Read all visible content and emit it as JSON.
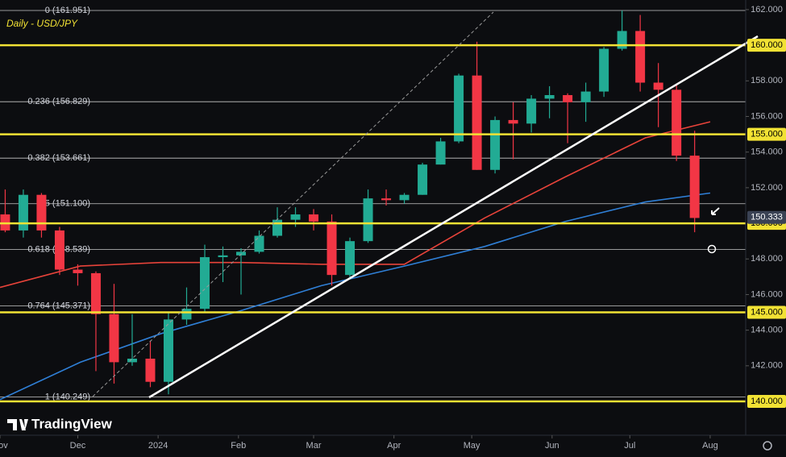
{
  "chart_data": {
    "type": "candlestick",
    "title": "Daily - USD/JPY",
    "brand": "TradingView",
    "x": [
      2,
      9,
      16,
      23,
      30,
      37,
      44,
      51,
      58,
      65,
      72,
      79,
      86,
      93,
      100,
      107,
      114,
      121,
      128,
      135,
      142,
      149,
      156,
      163,
      170,
      177,
      184,
      191,
      198,
      205,
      212,
      219,
      226,
      233,
      240,
      247,
      254,
      261,
      268
    ],
    "open": [
      150.5,
      149.6,
      151.6,
      149.6,
      147.4,
      147.2,
      144.9,
      142.2,
      142.4,
      141.1,
      144.6,
      145.2,
      148.1,
      148.2,
      148.4,
      149.3,
      150.2,
      150.5,
      150.1,
      147.1,
      149.0,
      151.4,
      151.3,
      151.6,
      153.3,
      154.6,
      158.3,
      153.0,
      155.8,
      155.6,
      157.0,
      157.2,
      156.8,
      157.4,
      159.8,
      160.8,
      157.9,
      157.5,
      153.8
    ],
    "high": [
      151.9,
      151.9,
      151.7,
      149.8,
      147.7,
      147.3,
      146.6,
      144.9,
      143.4,
      145.0,
      146.4,
      148.8,
      148.7,
      148.6,
      149.6,
      150.9,
      150.9,
      150.8,
      150.5,
      149.2,
      151.9,
      151.9,
      151.7,
      153.4,
      154.8,
      158.4,
      160.2,
      156.0,
      156.8,
      157.2,
      157.7,
      157.3,
      157.9,
      159.9,
      161.95,
      161.7,
      159.0,
      157.8,
      155.2
    ],
    "low": [
      149.5,
      149.2,
      149.2,
      147.1,
      146.5,
      141.7,
      141.0,
      142.0,
      140.8,
      140.4,
      144.3,
      145.0,
      146.7,
      146.0,
      148.3,
      149.2,
      149.8,
      149.6,
      146.5,
      146.9,
      148.9,
      151.0,
      151.1,
      151.6,
      153.3,
      154.5,
      153.0,
      152.8,
      153.6,
      155.1,
      155.9,
      154.5,
      155.7,
      157.1,
      159.7,
      157.4,
      155.4,
      153.5,
      149.5
    ],
    "close": [
      149.6,
      151.6,
      149.6,
      147.4,
      147.2,
      144.9,
      142.2,
      142.4,
      141.1,
      144.6,
      145.2,
      148.1,
      148.2,
      148.4,
      149.3,
      150.2,
      150.5,
      150.1,
      147.1,
      149.0,
      151.4,
      151.3,
      151.6,
      153.3,
      154.6,
      158.3,
      153.0,
      155.8,
      155.6,
      157.0,
      157.2,
      156.8,
      157.4,
      159.8,
      160.8,
      157.9,
      157.5,
      153.8,
      150.3
    ],
    "up_color": "#22ab94",
    "down_color": "#f23645",
    "series": [
      {
        "color": "#e8433a",
        "x": [
          0,
          31,
          62,
          93,
          124,
          156,
          187,
          218,
          249,
          274
        ],
        "values": [
          146.4,
          147.6,
          147.8,
          147.8,
          147.7,
          147.7,
          150.3,
          152.6,
          154.8,
          155.7
        ]
      },
      {
        "color": "#2f7fd6",
        "x": [
          0,
          31,
          62,
          93,
          124,
          156,
          187,
          218,
          249,
          274
        ],
        "values": [
          140.1,
          142.2,
          143.8,
          145.1,
          146.5,
          147.6,
          148.7,
          150.1,
          151.2,
          151.7
        ]
      }
    ],
    "xlim": [
      0,
      287.7
    ],
    "xticks": [
      {
        "value": 0,
        "label": "Nov"
      },
      {
        "value": 30,
        "label": "Dec"
      },
      {
        "value": 61,
        "label": "2024"
      },
      {
        "value": 92,
        "label": "Feb"
      },
      {
        "value": 121,
        "label": "Mar"
      },
      {
        "value": 152,
        "label": "Apr"
      },
      {
        "value": 182,
        "label": "May"
      },
      {
        "value": 213,
        "label": "Jun"
      },
      {
        "value": 243,
        "label": "Jul"
      },
      {
        "value": 274,
        "label": "Aug"
      }
    ],
    "ylim": [
      138.1,
      162.54
    ],
    "yticks": [
      {
        "value": 162,
        "label": "162.000"
      },
      {
        "value": 158,
        "label": "158.000"
      },
      {
        "value": 156,
        "label": "156.000"
      },
      {
        "value": 154,
        "label": "154.000"
      },
      {
        "value": 152,
        "label": "152.000"
      },
      {
        "value": 148,
        "label": "148.000"
      },
      {
        "value": 146,
        "label": "146.000"
      },
      {
        "value": 144,
        "label": "144.000"
      },
      {
        "value": 142,
        "label": "142.000"
      }
    ],
    "levels": [
      {
        "value": 160,
        "label": "160.000"
      },
      {
        "value": 155,
        "label": "155.000"
      },
      {
        "value": 150,
        "label": "150.000"
      },
      {
        "value": 145,
        "label": "145.000"
      },
      {
        "value": 140,
        "label": "140.000"
      }
    ],
    "level_color": "#f2e234",
    "fib": [
      {
        "value": 161.951,
        "label": "0 (161.951)"
      },
      {
        "value": 156.829,
        "label": "0.236 (156.829)"
      },
      {
        "value": 153.661,
        "label": "0.382 (153.661)"
      },
      {
        "value": 151.1,
        "label": "0.5 (151.100)"
      },
      {
        "value": 148.539,
        "label": "0.618 (148.539)"
      },
      {
        "value": 145.371,
        "label": "0.764 (145.371)"
      },
      {
        "value": 140.249,
        "label": "1 (140.249)"
      }
    ],
    "last_price": {
      "value": 150.333,
      "label": "150.333"
    }
  }
}
